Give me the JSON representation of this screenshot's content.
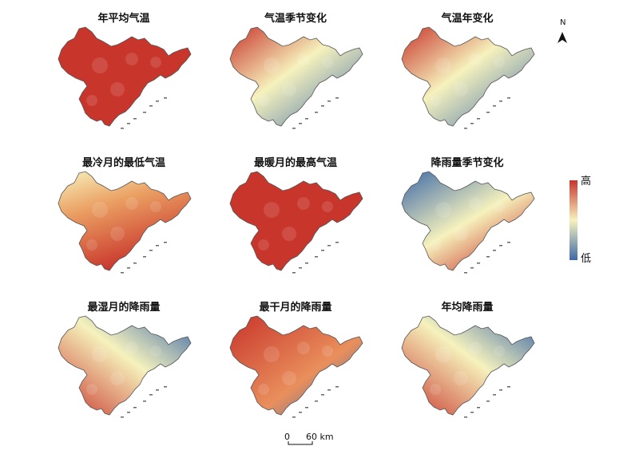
{
  "panels": [
    {
      "title": "年平均气温",
      "pattern": "high"
    },
    {
      "title": "气温季节变化",
      "pattern": "nw"
    },
    {
      "title": "气温年变化",
      "pattern": "nw"
    },
    {
      "title": "最冷月的最低气温",
      "pattern": "mid"
    },
    {
      "title": "最暖月的最高气温",
      "pattern": "high"
    },
    {
      "title": "降雨量季节变化",
      "pattern": "se"
    },
    {
      "title": "最湿月的降雨量",
      "pattern": "sw"
    },
    {
      "title": "最干月的降雨量",
      "pattern": "nwhigh"
    },
    {
      "title": "年均降雨量",
      "pattern": "sw"
    }
  ],
  "legend": {
    "high": "高",
    "low": "低"
  },
  "colors": {
    "high": "#c8352b",
    "mid": "#f6f2bd",
    "low": "#3e6aa8"
  },
  "scalebar": {
    "zero": "0",
    "distance": "60 km"
  },
  "north": "N"
}
